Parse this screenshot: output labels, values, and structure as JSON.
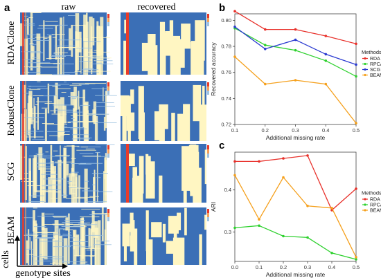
{
  "panel_labels": {
    "a": "a",
    "b": "b",
    "c": "c"
  },
  "heatmaps": {
    "column_titles": [
      "raw",
      "recovered"
    ],
    "rows": [
      "RDAClone",
      "RobustClone",
      "SCG",
      "BEAM"
    ],
    "y_axis_label": "cells",
    "x_axis_label": "genotype sites",
    "colors": {
      "blue": "#3b6fb6",
      "cream": "#fff6c2",
      "red": "#e83b2a",
      "orange": "#f5a05a",
      "lightblue": "#9fc3e0"
    }
  },
  "chart_data": [
    {
      "type": "line",
      "title": "",
      "xlabel": "Additional missing rate",
      "ylabel": "Recovered accuracy",
      "x": [
        0.1,
        0.2,
        0.3,
        0.4,
        0.5
      ],
      "xticks": [
        "0.1",
        "0.2",
        "0.3",
        "0.4",
        "0.5"
      ],
      "xlim": [
        0.1,
        0.5
      ],
      "ylim": [
        0.72,
        0.805
      ],
      "yticks": [
        "0.72",
        "0.74",
        "0.76",
        "0.78",
        "0.80"
      ],
      "legend_title": "Methods",
      "legend_position": "right",
      "series": [
        {
          "name": "RDA",
          "color": "#e8302a",
          "values": [
            0.807,
            0.793,
            0.793,
            0.788,
            0.782
          ]
        },
        {
          "name": "RPCA",
          "color": "#2fd12f",
          "values": [
            0.794,
            0.781,
            0.777,
            0.769,
            0.757
          ]
        },
        {
          "name": "SCG",
          "color": "#2b3bd1",
          "values": [
            0.795,
            0.778,
            0.785,
            0.774,
            0.766
          ]
        },
        {
          "name": "BEAM",
          "color": "#f5a01c",
          "values": [
            0.772,
            0.751,
            0.754,
            0.751,
            0.721
          ]
        }
      ]
    },
    {
      "type": "line",
      "title": "",
      "xlabel": "Additional missing rate",
      "ylabel": "ARI",
      "x": [
        0.0,
        0.1,
        0.2,
        0.3,
        0.4,
        0.5
      ],
      "xticks": [
        "0.0",
        "0.1",
        "0.2",
        "0.3",
        "0.4",
        "0.5"
      ],
      "xlim": [
        0.0,
        0.5
      ],
      "ylim": [
        0.23,
        0.49
      ],
      "yticks": [
        "0.3",
        "0.4"
      ],
      "legend_title": "Methods",
      "legend_position": "right",
      "series": [
        {
          "name": "RDA",
          "color": "#e8302a",
          "values": [
            0.468,
            0.468,
            0.475,
            0.482,
            0.352,
            0.403
          ]
        },
        {
          "name": "RPCA",
          "color": "#2fd12f",
          "values": [
            0.31,
            0.315,
            0.29,
            0.287,
            0.25,
            0.235
          ]
        },
        {
          "name": "BEAM",
          "color": "#f5a01c",
          "values": [
            0.435,
            0.33,
            0.43,
            0.362,
            0.357,
            0.24
          ]
        }
      ]
    }
  ]
}
